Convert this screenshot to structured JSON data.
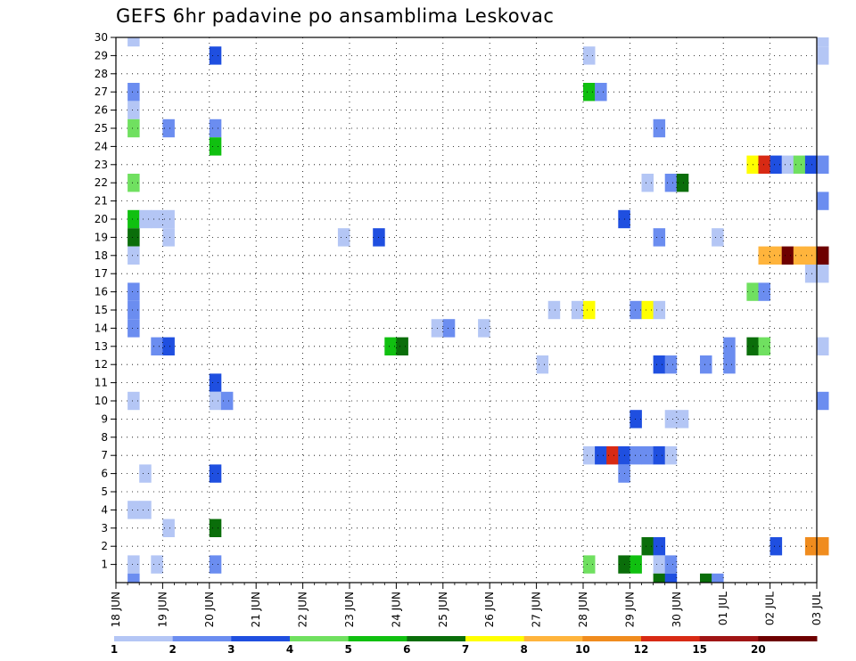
{
  "chart_data": {
    "type": "heatmap",
    "title": "GEFS 6hr padavine po ansamblima Leskovac",
    "y_ticks": [
      "1",
      "2",
      "3",
      "4",
      "5",
      "6",
      "7",
      "8",
      "9",
      "10",
      "11",
      "12",
      "13",
      "14",
      "15",
      "16",
      "17",
      "18",
      "19",
      "20",
      "21",
      "22",
      "23",
      "24",
      "25",
      "26",
      "27",
      "28",
      "29",
      "30"
    ],
    "x_ticks": [
      "18 JUN",
      "19 JUN",
      "20 JUN",
      "21 JUN",
      "22 JUN",
      "23 JUN",
      "24 JUN",
      "25 JUN",
      "26 JUN",
      "27 JUN",
      "28 JUN",
      "29 JUN",
      "30 JUN",
      "01 JUL",
      "02 JUL",
      "03 JUL"
    ],
    "x_unit": "6-hour step, 4 steps per day, 18 JUN 00Z to 03 JUL 00Z",
    "y_range": [
      0,
      30
    ],
    "grid": true,
    "colorbar": {
      "tick_labels": [
        "1",
        "2",
        "3",
        "4",
        "5",
        "6",
        "7",
        "8",
        "10",
        "12",
        "15",
        "20"
      ],
      "colors": [
        "#b4c6f5",
        "#6b8df0",
        "#1f4fe0",
        "#70e060",
        "#10c010",
        "#0a6e0a",
        "#ffff00",
        "#ffb43c",
        "#f08c1e",
        "#d82a14",
        "#a01414",
        "#6e0000"
      ]
    },
    "cells": [
      [
        1,
        30,
        0
      ],
      [
        1,
        27,
        1
      ],
      [
        1,
        26,
        0
      ],
      [
        1,
        25,
        3
      ],
      [
        1,
        22,
        3
      ],
      [
        1,
        20,
        4
      ],
      [
        1,
        19,
        5
      ],
      [
        1,
        18,
        0
      ],
      [
        1,
        16,
        1
      ],
      [
        1,
        15,
        1
      ],
      [
        1,
        14,
        1
      ],
      [
        1,
        10,
        0
      ],
      [
        1,
        4,
        0
      ],
      [
        1,
        1,
        0
      ],
      [
        1,
        0,
        1
      ],
      [
        2,
        20,
        0
      ],
      [
        2,
        6,
        0
      ],
      [
        2,
        4,
        0
      ],
      [
        3,
        20,
        0
      ],
      [
        3,
        13,
        1
      ],
      [
        3,
        1,
        0
      ],
      [
        4,
        25,
        1
      ],
      [
        4,
        20,
        0
      ],
      [
        4,
        19,
        0
      ],
      [
        4,
        13,
        2
      ],
      [
        4,
        3,
        0
      ],
      [
        8,
        29,
        2
      ],
      [
        8,
        25,
        1
      ],
      [
        8,
        24,
        4
      ],
      [
        8,
        11,
        2
      ],
      [
        8,
        10,
        0
      ],
      [
        8,
        6,
        2
      ],
      [
        8,
        3,
        5
      ],
      [
        8,
        1,
        1
      ],
      [
        9,
        10,
        1
      ],
      [
        19,
        19,
        0
      ],
      [
        22,
        19,
        2
      ],
      [
        23,
        13,
        4
      ],
      [
        24,
        13,
        5
      ],
      [
        27,
        14,
        0
      ],
      [
        28,
        14,
        1
      ],
      [
        31,
        14,
        0
      ],
      [
        36,
        12,
        0
      ],
      [
        37,
        15,
        0
      ],
      [
        39,
        15,
        0
      ],
      [
        40,
        15,
        6
      ],
      [
        40,
        29,
        0
      ],
      [
        40,
        27,
        4
      ],
      [
        40,
        7,
        0
      ],
      [
        40,
        1,
        3
      ],
      [
        41,
        27,
        1
      ],
      [
        41,
        7,
        2
      ],
      [
        42,
        7,
        9
      ],
      [
        43,
        20,
        2
      ],
      [
        43,
        7,
        2
      ],
      [
        43,
        6,
        1
      ],
      [
        43,
        1,
        5
      ],
      [
        44,
        15,
        1
      ],
      [
        44,
        9,
        2
      ],
      [
        44,
        7,
        1
      ],
      [
        44,
        1,
        4
      ],
      [
        45,
        22,
        0
      ],
      [
        45,
        15,
        6
      ],
      [
        45,
        7,
        1
      ],
      [
        45,
        2,
        5
      ],
      [
        46,
        25,
        1
      ],
      [
        46,
        19,
        1
      ],
      [
        46,
        15,
        0
      ],
      [
        46,
        12,
        2
      ],
      [
        46,
        7,
        2
      ],
      [
        46,
        2,
        2
      ],
      [
        46,
        1,
        0
      ],
      [
        46,
        0,
        5
      ],
      [
        47,
        22,
        1
      ],
      [
        47,
        12,
        1
      ],
      [
        47,
        9,
        0
      ],
      [
        47,
        7,
        0
      ],
      [
        47,
        1,
        1
      ],
      [
        47,
        0,
        2
      ],
      [
        48,
        22,
        5
      ],
      [
        48,
        9,
        0
      ],
      [
        50,
        12,
        1
      ],
      [
        50,
        0,
        5
      ],
      [
        51,
        19,
        0
      ],
      [
        51,
        0,
        1
      ],
      [
        52,
        13,
        1
      ],
      [
        52,
        12,
        1
      ],
      [
        54,
        23,
        6
      ],
      [
        54,
        16,
        3
      ],
      [
        54,
        13,
        5
      ],
      [
        55,
        23,
        9
      ],
      [
        55,
        18,
        7
      ],
      [
        55,
        16,
        1
      ],
      [
        55,
        13,
        3
      ],
      [
        56,
        23,
        2
      ],
      [
        56,
        18,
        7
      ],
      [
        56,
        2,
        2
      ],
      [
        57,
        23,
        0
      ],
      [
        57,
        18,
        11
      ],
      [
        58,
        23,
        3
      ],
      [
        58,
        18,
        7
      ],
      [
        59,
        23,
        2
      ],
      [
        59,
        18,
        7
      ],
      [
        59,
        17,
        0
      ],
      [
        59,
        2,
        8
      ],
      [
        60,
        30,
        0
      ],
      [
        60,
        29,
        0
      ],
      [
        60,
        23,
        1
      ],
      [
        60,
        21,
        1
      ],
      [
        60,
        18,
        11
      ],
      [
        60,
        17,
        0
      ],
      [
        60,
        13,
        0
      ],
      [
        60,
        10,
        1
      ],
      [
        60,
        2,
        8
      ]
    ]
  }
}
